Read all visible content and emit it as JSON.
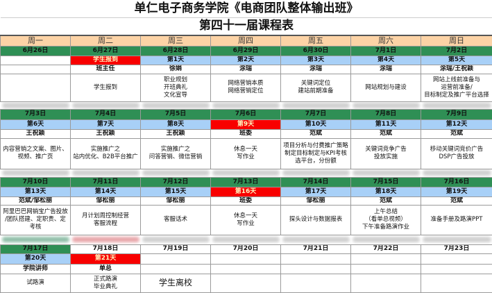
{
  "title": "单仁电子商务学院《电商团队整体输出班》",
  "subtitle": "第四十一届课程表",
  "weekdays": [
    "周一",
    "周二",
    "周三",
    "周四",
    "周五",
    "周六",
    "周日"
  ],
  "colors": {
    "weekday": "#fcd3a6",
    "date": "#2f8f55",
    "day": "#a8d0f7",
    "highlight": "#f80000"
  },
  "blocks": [
    {
      "dates": [
        "6月26日",
        "6月27日",
        "6月28日",
        "6月29日",
        "6月30日",
        "7月1日",
        "7月2日"
      ],
      "days": [
        {
          "label": "",
          "style": "none"
        },
        {
          "label": "学生报到",
          "style": "red"
        },
        {
          "label": "第1天",
          "style": "blue"
        },
        {
          "label": "第2天",
          "style": "blue"
        },
        {
          "label": "第3天",
          "style": "blue"
        },
        {
          "label": "第4天",
          "style": "blue"
        },
        {
          "label": "第5天",
          "style": "blue"
        }
      ],
      "teachers": [
        "",
        "班主任",
        "徐娟",
        "涂瑞",
        "涂瑞",
        "涂瑞",
        "涂瑞/王祝颖"
      ],
      "contents": [
        "",
        "学生报到",
        "职业规划\n开班典礼\n文化宣导",
        "网络营销本质\n网络营销定位",
        "关键词定位\n建站前期准备",
        "网站规划与建设",
        "网站上线前准备与\n运营前准备/\n目标制定及推广平台选择"
      ]
    },
    {
      "dates": [
        "7月3日",
        "7月4日",
        "7月5日",
        "7月6日",
        "7月7日",
        "7月8日",
        "7月9日"
      ],
      "days": [
        {
          "label": "第6天",
          "style": "blue"
        },
        {
          "label": "第7天",
          "style": "blue"
        },
        {
          "label": "第8天",
          "style": "blue"
        },
        {
          "label": "第9天",
          "style": "red"
        },
        {
          "label": "第10天",
          "style": "blue"
        },
        {
          "label": "第11天",
          "style": "blue"
        },
        {
          "label": "第12天",
          "style": "blue"
        }
      ],
      "teachers": [
        "王祝颖",
        "王祝颖",
        "王祝颖",
        "班委",
        "范斌",
        "范斌",
        "范斌"
      ],
      "contents": [
        "内容营销之文案、图片、\n视频、推广页",
        "实施推广之\n站内优化、B2B平台推广",
        "实施推广之\n问答营销、微信营销",
        "休息一天\n写作业",
        "项目分析与付费推广策略\n制定目标制定与KPI考核\n选平台，分份额",
        "关键词竞争广告\n投放实施",
        "移动关键词竞价广告\nDSP广告投放"
      ]
    },
    {
      "dates": [
        "7月10日",
        "7月11日",
        "7月12日",
        "7月13日",
        "7月14日",
        "7月15日",
        "7月16日"
      ],
      "days": [
        {
          "label": "第13天",
          "style": "blue"
        },
        {
          "label": "第14天",
          "style": "blue"
        },
        {
          "label": "第15天",
          "style": "blue"
        },
        {
          "label": "第16天",
          "style": "red"
        },
        {
          "label": "第17天",
          "style": "blue"
        },
        {
          "label": "第18天",
          "style": "blue"
        },
        {
          "label": "第19天",
          "style": "blue"
        }
      ],
      "teachers": [
        "范斌/邹松丽",
        "邹松丽",
        "邹松丽",
        "班委",
        "邹松丽",
        "范斌",
        "范斌"
      ],
      "contents": [
        "阿里巴巴网销宝广告投放\n/团队搭建、定职责、定\n考核",
        "月计划周控制经营\n客服流程",
        "客服话术",
        "休息一天\n写作业",
        "探头设计与数据报表",
        "上午总结\n（看单总视频）\n下午准备路演作业",
        "准备手册及路演PPT"
      ]
    },
    {
      "dates": [
        "7月17日",
        "7月18日",
        "7月19日",
        "7月20日",
        "7月21日",
        "7月22日",
        "7月23日"
      ],
      "days": [
        {
          "label": "第20天",
          "style": "blue"
        },
        {
          "label": "第21天",
          "style": "red"
        },
        {
          "label": "",
          "style": "none"
        },
        {
          "label": "",
          "style": "none"
        },
        {
          "label": "",
          "style": "none"
        },
        {
          "label": "",
          "style": "none"
        },
        {
          "label": "",
          "style": "none"
        }
      ],
      "teachers": [
        "学院讲师",
        "单总",
        "",
        "",
        "",
        "",
        ""
      ],
      "contents": [
        "试路演",
        "正式路演\n毕业典礼",
        "学生离校",
        "",
        "",
        "",
        ""
      ]
    }
  ]
}
